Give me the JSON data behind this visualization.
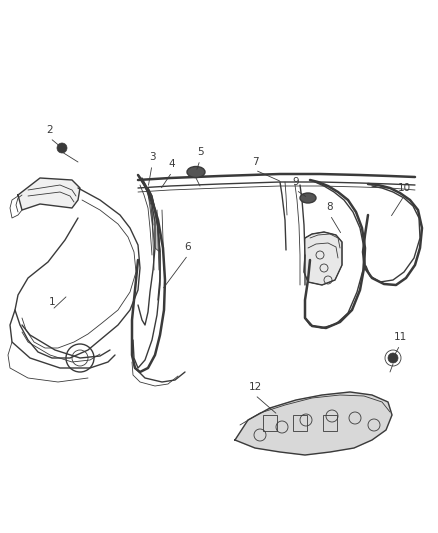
{
  "bg_color": "#ffffff",
  "line_color": "#3a3a3a",
  "figsize": [
    4.38,
    5.33
  ],
  "dpi": 100,
  "lw_main": 1.0,
  "lw_thick": 1.8,
  "lw_thin": 0.6
}
